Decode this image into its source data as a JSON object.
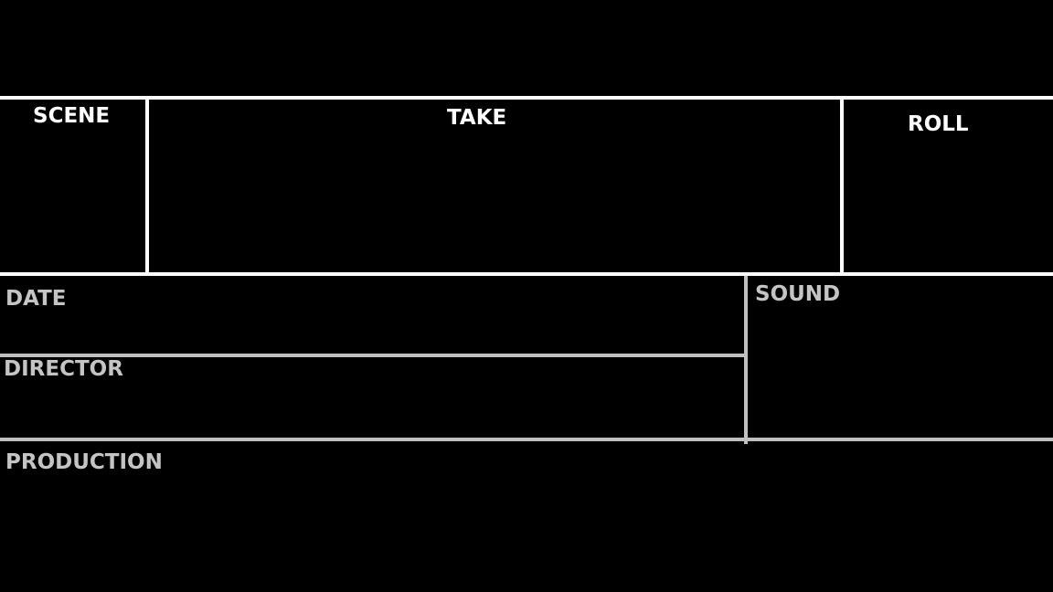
{
  "slate": {
    "top_row": {
      "scene": "SCENE",
      "take": "TAKE",
      "roll": "ROLL"
    },
    "middle": {
      "date": "DATE",
      "director": "DIRECTOR",
      "sound": "SOUND"
    },
    "bottom": {
      "production": "PRODUCTION"
    }
  },
  "colors": {
    "background": "#000000",
    "top_lines": "#ffffff",
    "lower_lines": "#c0c0c0",
    "top_text": "#ffffff",
    "lower_text": "#c4c4c4"
  }
}
